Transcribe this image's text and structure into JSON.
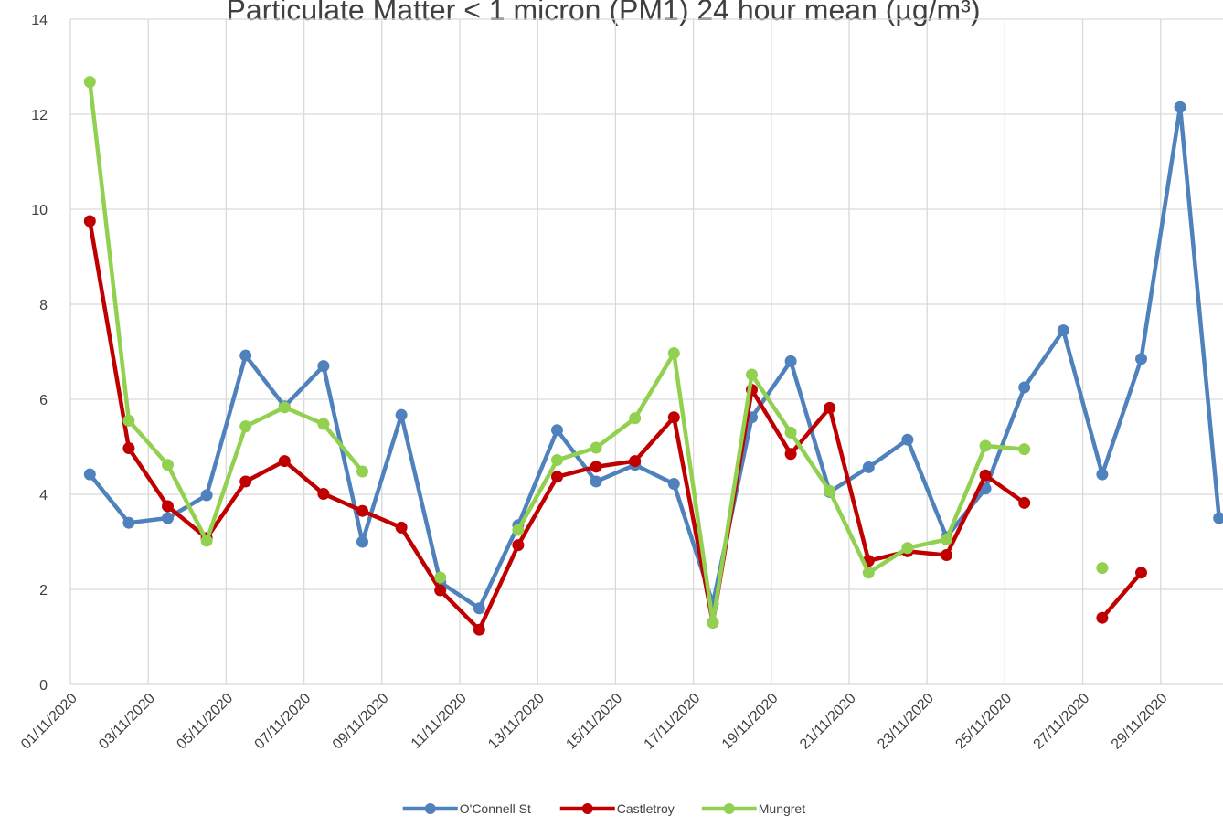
{
  "chart_data": {
    "type": "line",
    "title": "Particulate Matter < 1 micron (PM1) 24 hour mean (µg/m³)",
    "categories": [
      "01/11/2020",
      null,
      "03/11/2020",
      null,
      "05/11/2020",
      null,
      "07/11/2020",
      null,
      "09/11/2020",
      null,
      "11/11/2020",
      null,
      "13/11/2020",
      null,
      "15/11/2020",
      null,
      "17/11/2020",
      null,
      "19/11/2020",
      null,
      "21/11/2020",
      null,
      "23/11/2020",
      null,
      "25/11/2020",
      null,
      "27/11/2020",
      null,
      "29/11/2020",
      null
    ],
    "series": [
      {
        "name": "O'Connell St",
        "color": "#4f81bd",
        "values": [
          4.42,
          3.4,
          3.5,
          3.98,
          6.92,
          5.85,
          6.7,
          3.0,
          5.67,
          2.15,
          1.6,
          3.35,
          5.35,
          4.27,
          4.62,
          4.22,
          1.7,
          5.62,
          6.8,
          4.05,
          4.57,
          5.15,
          3.1,
          4.12,
          6.25,
          7.45,
          4.42,
          6.85,
          12.15,
          3.5
        ]
      },
      {
        "name": "Castletroy",
        "color": "#c00000",
        "values": [
          9.75,
          4.97,
          3.75,
          3.08,
          4.27,
          4.7,
          4.01,
          3.65,
          3.3,
          1.98,
          1.15,
          2.93,
          4.37,
          4.58,
          4.7,
          5.62,
          1.3,
          6.2,
          4.85,
          5.82,
          2.6,
          2.8,
          2.72,
          4.4,
          3.82,
          null,
          1.4,
          2.35,
          null,
          null
        ]
      },
      {
        "name": "Mungret",
        "color": "#92d050",
        "values": [
          12.68,
          5.55,
          4.62,
          3.02,
          5.43,
          5.83,
          5.48,
          4.48,
          null,
          2.25,
          null,
          3.25,
          4.72,
          4.98,
          5.6,
          6.97,
          1.3,
          6.52,
          5.3,
          4.07,
          2.35,
          2.87,
          3.05,
          5.02,
          4.95,
          null,
          2.45,
          null,
          null,
          null
        ]
      }
    ],
    "ylim": [
      0,
      14
    ],
    "yticks": [
      0,
      2,
      4,
      6,
      8,
      10,
      12,
      14
    ],
    "grid": true,
    "legend": "bottom"
  }
}
